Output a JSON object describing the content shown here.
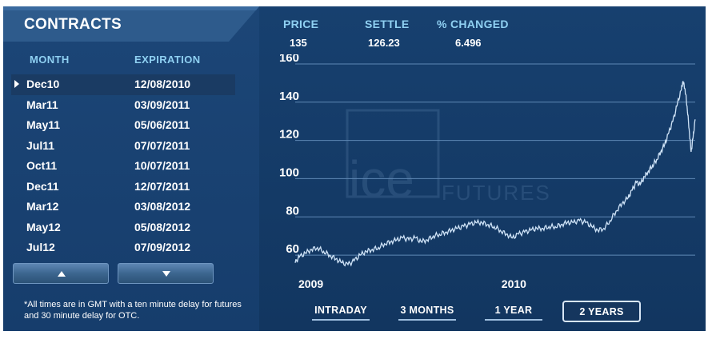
{
  "contracts": {
    "title": "CONTRACTS",
    "columns": {
      "month": "MONTH",
      "expiration": "EXPIRATION"
    },
    "rows": [
      {
        "month": "Dec10",
        "expiration": "12/08/2010",
        "selected": true
      },
      {
        "month": "Mar11",
        "expiration": "03/09/2011"
      },
      {
        "month": "May11",
        "expiration": "05/06/2011"
      },
      {
        "month": "Jul11",
        "expiration": "07/07/2011"
      },
      {
        "month": "Oct11",
        "expiration": "10/07/2011"
      },
      {
        "month": "Dec11",
        "expiration": "12/07/2011"
      },
      {
        "month": "Mar12",
        "expiration": "03/08/2012"
      },
      {
        "month": "May12",
        "expiration": "05/08/2012"
      },
      {
        "month": "Jul12",
        "expiration": "07/09/2012"
      }
    ],
    "scroll_up_icon": "triangle-up-icon",
    "scroll_down_icon": "triangle-down-icon",
    "note": "*All times are in GMT with a ten minute delay for futures and 30 minute delay for OTC."
  },
  "stats": {
    "price_label": "PRICE",
    "price": "135",
    "settle_label": "SETTLE",
    "settle": "126.23",
    "changed_label": "% CHANGED",
    "changed": "6.496"
  },
  "watermark": {
    "brand": "ice",
    "suffix": "FUTURES"
  },
  "ranges": [
    {
      "label": "INTRADAY"
    },
    {
      "label": "3 MONTHS"
    },
    {
      "label": "1 YEAR"
    },
    {
      "label": "2 YEARS",
      "active": true
    }
  ],
  "colors": {
    "accent": "#8fd0f2",
    "panel": "#1c4677",
    "line": "#cfe3f7"
  },
  "chart_data": {
    "type": "line",
    "ylim": [
      50,
      165
    ],
    "yticks": [
      60,
      80,
      100,
      120,
      140,
      160
    ],
    "xticks": [
      {
        "label": "2009",
        "x": 2009.0
      },
      {
        "label": "2010",
        "x": 2010.0
      }
    ],
    "xlim": [
      2009.0,
      2010.97
    ],
    "grid": true,
    "series": [
      {
        "points": [
          [
            2009.0,
            56
          ],
          [
            2009.02,
            59
          ],
          [
            2009.05,
            61
          ],
          [
            2009.08,
            63
          ],
          [
            2009.11,
            64
          ],
          [
            2009.14,
            62
          ],
          [
            2009.17,
            60
          ],
          [
            2009.2,
            58
          ],
          [
            2009.23,
            56
          ],
          [
            2009.26,
            55
          ],
          [
            2009.29,
            57
          ],
          [
            2009.32,
            60
          ],
          [
            2009.35,
            62
          ],
          [
            2009.38,
            63
          ],
          [
            2009.41,
            64
          ],
          [
            2009.44,
            66
          ],
          [
            2009.47,
            67
          ],
          [
            2009.5,
            68
          ],
          [
            2009.53,
            69
          ],
          [
            2009.56,
            68
          ],
          [
            2009.59,
            69
          ],
          [
            2009.62,
            67
          ],
          [
            2009.65,
            68
          ],
          [
            2009.68,
            70
          ],
          [
            2009.71,
            71
          ],
          [
            2009.74,
            72
          ],
          [
            2009.77,
            73
          ],
          [
            2009.8,
            74
          ],
          [
            2009.83,
            75
          ],
          [
            2009.86,
            76
          ],
          [
            2009.89,
            77
          ],
          [
            2009.92,
            77
          ],
          [
            2009.95,
            76
          ],
          [
            2009.98,
            75
          ],
          [
            2010.01,
            73
          ],
          [
            2010.04,
            71
          ],
          [
            2010.07,
            69
          ],
          [
            2010.1,
            71
          ],
          [
            2010.13,
            72
          ],
          [
            2010.16,
            73
          ],
          [
            2010.19,
            74
          ],
          [
            2010.22,
            74
          ],
          [
            2010.25,
            75
          ],
          [
            2010.28,
            75
          ],
          [
            2010.31,
            76
          ],
          [
            2010.34,
            77
          ],
          [
            2010.37,
            77
          ],
          [
            2010.4,
            78
          ],
          [
            2010.43,
            77
          ],
          [
            2010.46,
            75
          ],
          [
            2010.49,
            73
          ],
          [
            2010.52,
            74
          ],
          [
            2010.55,
            78
          ],
          [
            2010.58,
            83
          ],
          [
            2010.61,
            87
          ],
          [
            2010.64,
            90
          ],
          [
            2010.66,
            94
          ],
          [
            2010.68,
            98
          ],
          [
            2010.7,
            97
          ],
          [
            2010.72,
            101
          ],
          [
            2010.74,
            104
          ],
          [
            2010.76,
            107
          ],
          [
            2010.78,
            110
          ],
          [
            2010.8,
            114
          ],
          [
            2010.82,
            118
          ],
          [
            2010.84,
            124
          ],
          [
            2010.86,
            130
          ],
          [
            2010.88,
            138
          ],
          [
            2010.9,
            146
          ],
          [
            2010.91,
            151
          ],
          [
            2010.92,
            147
          ],
          [
            2010.93,
            138
          ],
          [
            2010.94,
            126
          ],
          [
            2010.95,
            114
          ],
          [
            2010.96,
            122
          ],
          [
            2010.97,
            131
          ]
        ]
      }
    ]
  }
}
